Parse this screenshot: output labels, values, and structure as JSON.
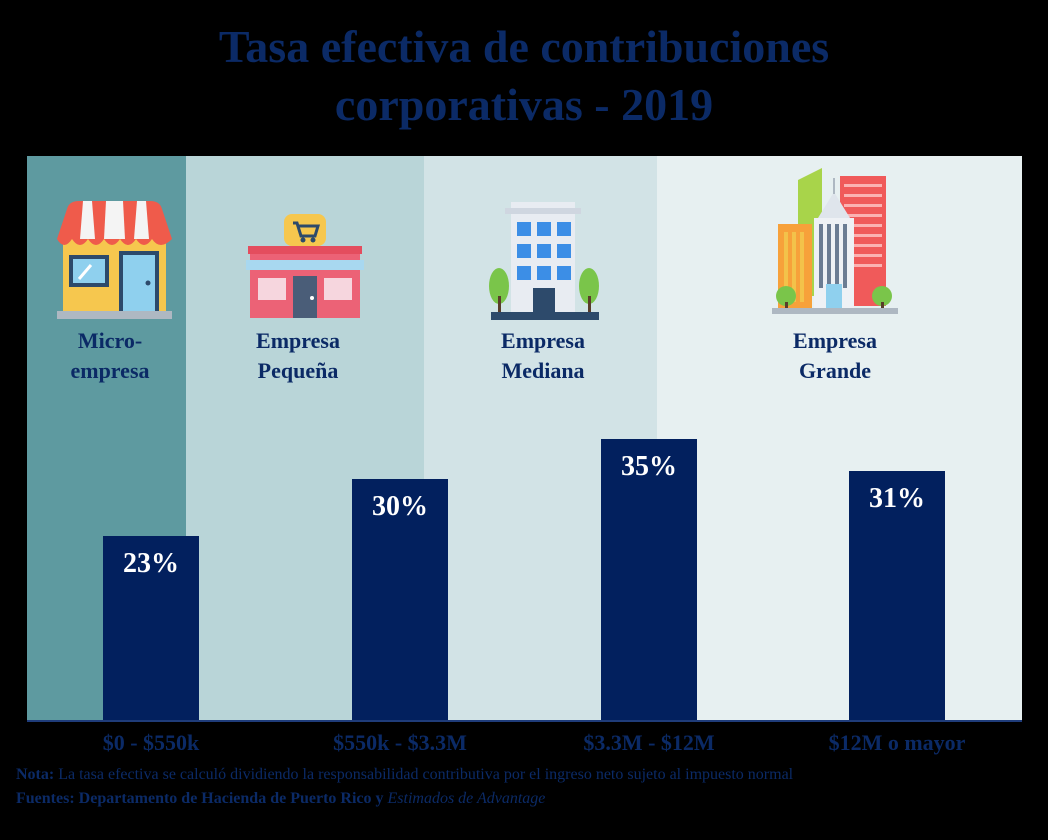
{
  "title": [
    "Tasa efectiva de contribuciones",
    "corporativas - 2019"
  ],
  "segments": [
    {
      "label": [
        "Micro-",
        "empresa"
      ],
      "icon": "shop-icon",
      "color": "#5e9aa0"
    },
    {
      "label": [
        "Empresa",
        "Pequeña"
      ],
      "icon": "store-icon",
      "color": "#b9d5d8"
    },
    {
      "label": [
        "Empresa",
        "Mediana"
      ],
      "icon": "office-building-icon",
      "color": "#d2e3e6"
    },
    {
      "label": [
        "Empresa",
        "Grande"
      ],
      "icon": "skyscrapers-icon",
      "color": "#e7f0f1"
    }
  ],
  "chart_data": {
    "type": "bar",
    "title": "Tasa efectiva de contribuciones corporativas - 2019",
    "categories": [
      "$0 - $550k",
      "$550k - $3.3M",
      "$3.3M - $12M",
      "$12M o mayor"
    ],
    "values": [
      23,
      30,
      35,
      31
    ],
    "data_labels": [
      "23%",
      "30%",
      "35%",
      "31%"
    ],
    "ylim": [
      0,
      70
    ],
    "xlabel": "",
    "ylabel": "",
    "bar_color": "#02205e"
  },
  "note": {
    "label": "Nota:",
    "text": " La tasa efectiva se calculó dividiendo la responsabilidad contributiva por el ingreso neto sujeto  al impuesto normal"
  },
  "sources": {
    "label": "Fuentes: Departamento de Hacienda de Puerto Rico y",
    "italic": "Estimados de Advantage"
  }
}
